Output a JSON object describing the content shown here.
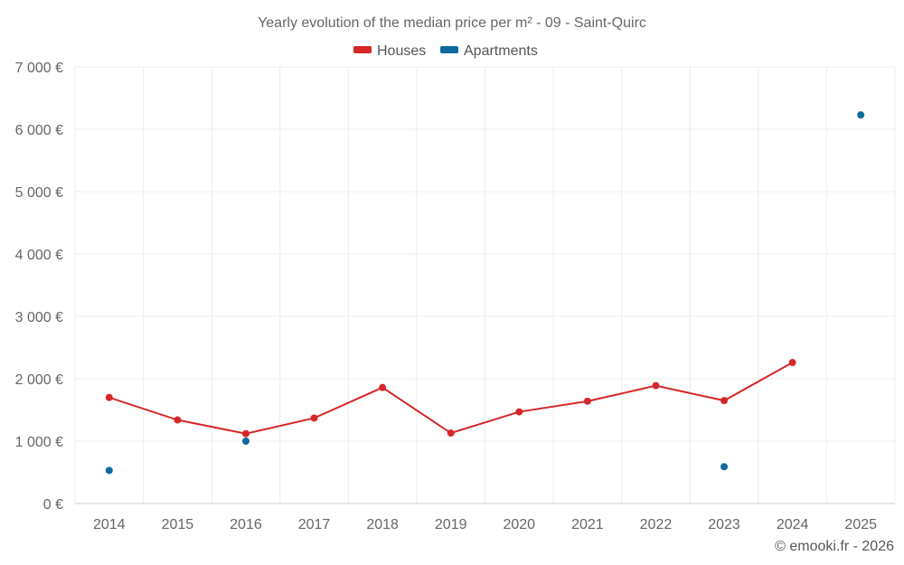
{
  "chart_data": {
    "type": "line",
    "title": "Yearly evolution of the median price per m² - 09 - Saint-Quirc",
    "categories": [
      "2014",
      "2015",
      "2016",
      "2017",
      "2018",
      "2019",
      "2020",
      "2021",
      "2022",
      "2023",
      "2024",
      "2025"
    ],
    "y_ticks": [
      "0 €",
      "1 000 €",
      "2 000 €",
      "3 000 €",
      "4 000 €",
      "5 000 €",
      "6 000 €",
      "7 000 €"
    ],
    "ylim": [
      0,
      7000
    ],
    "grid": true,
    "legend_position": "top-center",
    "series": [
      {
        "name": "Houses",
        "color": "#d62728",
        "connected": true,
        "values": [
          1700,
          1340,
          1120,
          1370,
          1860,
          1130,
          1470,
          1640,
          1890,
          1650,
          2260,
          null
        ]
      },
      {
        "name": "Apartments",
        "color": "#0f6a9f",
        "connected": false,
        "values": [
          530,
          null,
          1000,
          null,
          null,
          null,
          null,
          null,
          null,
          590,
          null,
          6230
        ]
      }
    ],
    "credit": "© emooki.fr - 2026"
  }
}
